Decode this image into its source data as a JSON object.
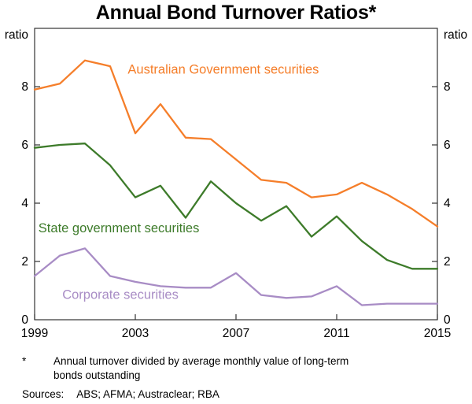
{
  "title": "Annual Bond Turnover Ratios*",
  "chart_data": {
    "type": "line",
    "title": "Annual Bond Turnover Ratios*",
    "xlabel": "",
    "ylabel_left": "ratio",
    "ylabel_right": "ratio",
    "ylim": [
      0,
      10
    ],
    "yticks": [
      0,
      2,
      4,
      6,
      8
    ],
    "xticks": [
      1999,
      2003,
      2007,
      2011,
      2015
    ],
    "grid": false,
    "legend_position": "inline-labels",
    "x": [
      1999,
      2000,
      2001,
      2002,
      2003,
      2004,
      2005,
      2006,
      2007,
      2008,
      2009,
      2010,
      2011,
      2012,
      2013,
      2014,
      2015
    ],
    "series": [
      {
        "name": "Australian Government securities",
        "color": "#f57e2a",
        "values": [
          7.9,
          8.1,
          8.9,
          8.7,
          6.4,
          7.4,
          6.25,
          6.2,
          5.5,
          4.8,
          4.7,
          4.2,
          4.3,
          4.7,
          4.3,
          3.8,
          3.2
        ],
        "label": {
          "x": 2002.7,
          "y": 8.45,
          "anchor": "start"
        }
      },
      {
        "name": "State government securities",
        "color": "#3d7b2a",
        "values": [
          5.9,
          6.0,
          6.05,
          5.3,
          4.2,
          4.6,
          3.5,
          4.75,
          4.0,
          3.4,
          3.9,
          2.85,
          3.55,
          2.7,
          2.05,
          1.75,
          1.75
        ],
        "label": {
          "x": 1999.15,
          "y": 3.0,
          "anchor": "start"
        }
      },
      {
        "name": "Corporate securities",
        "color": "#a88cc5",
        "values": [
          1.5,
          2.2,
          2.45,
          1.5,
          1.3,
          1.15,
          1.1,
          1.1,
          1.6,
          0.85,
          0.75,
          0.8,
          1.15,
          0.5,
          0.55,
          0.55,
          0.55
        ],
        "label": {
          "x": 2000.1,
          "y": 0.72,
          "anchor": "start"
        }
      }
    ],
    "axis_color": "#333333",
    "tick_label_color": "#000000"
  },
  "footnote": {
    "marker": "*",
    "text": "Annual turnover divided by average monthly value of long-term bonds outstanding",
    "sources_label": "Sources:",
    "sources": "ABS; AFMA; Austraclear; RBA"
  }
}
